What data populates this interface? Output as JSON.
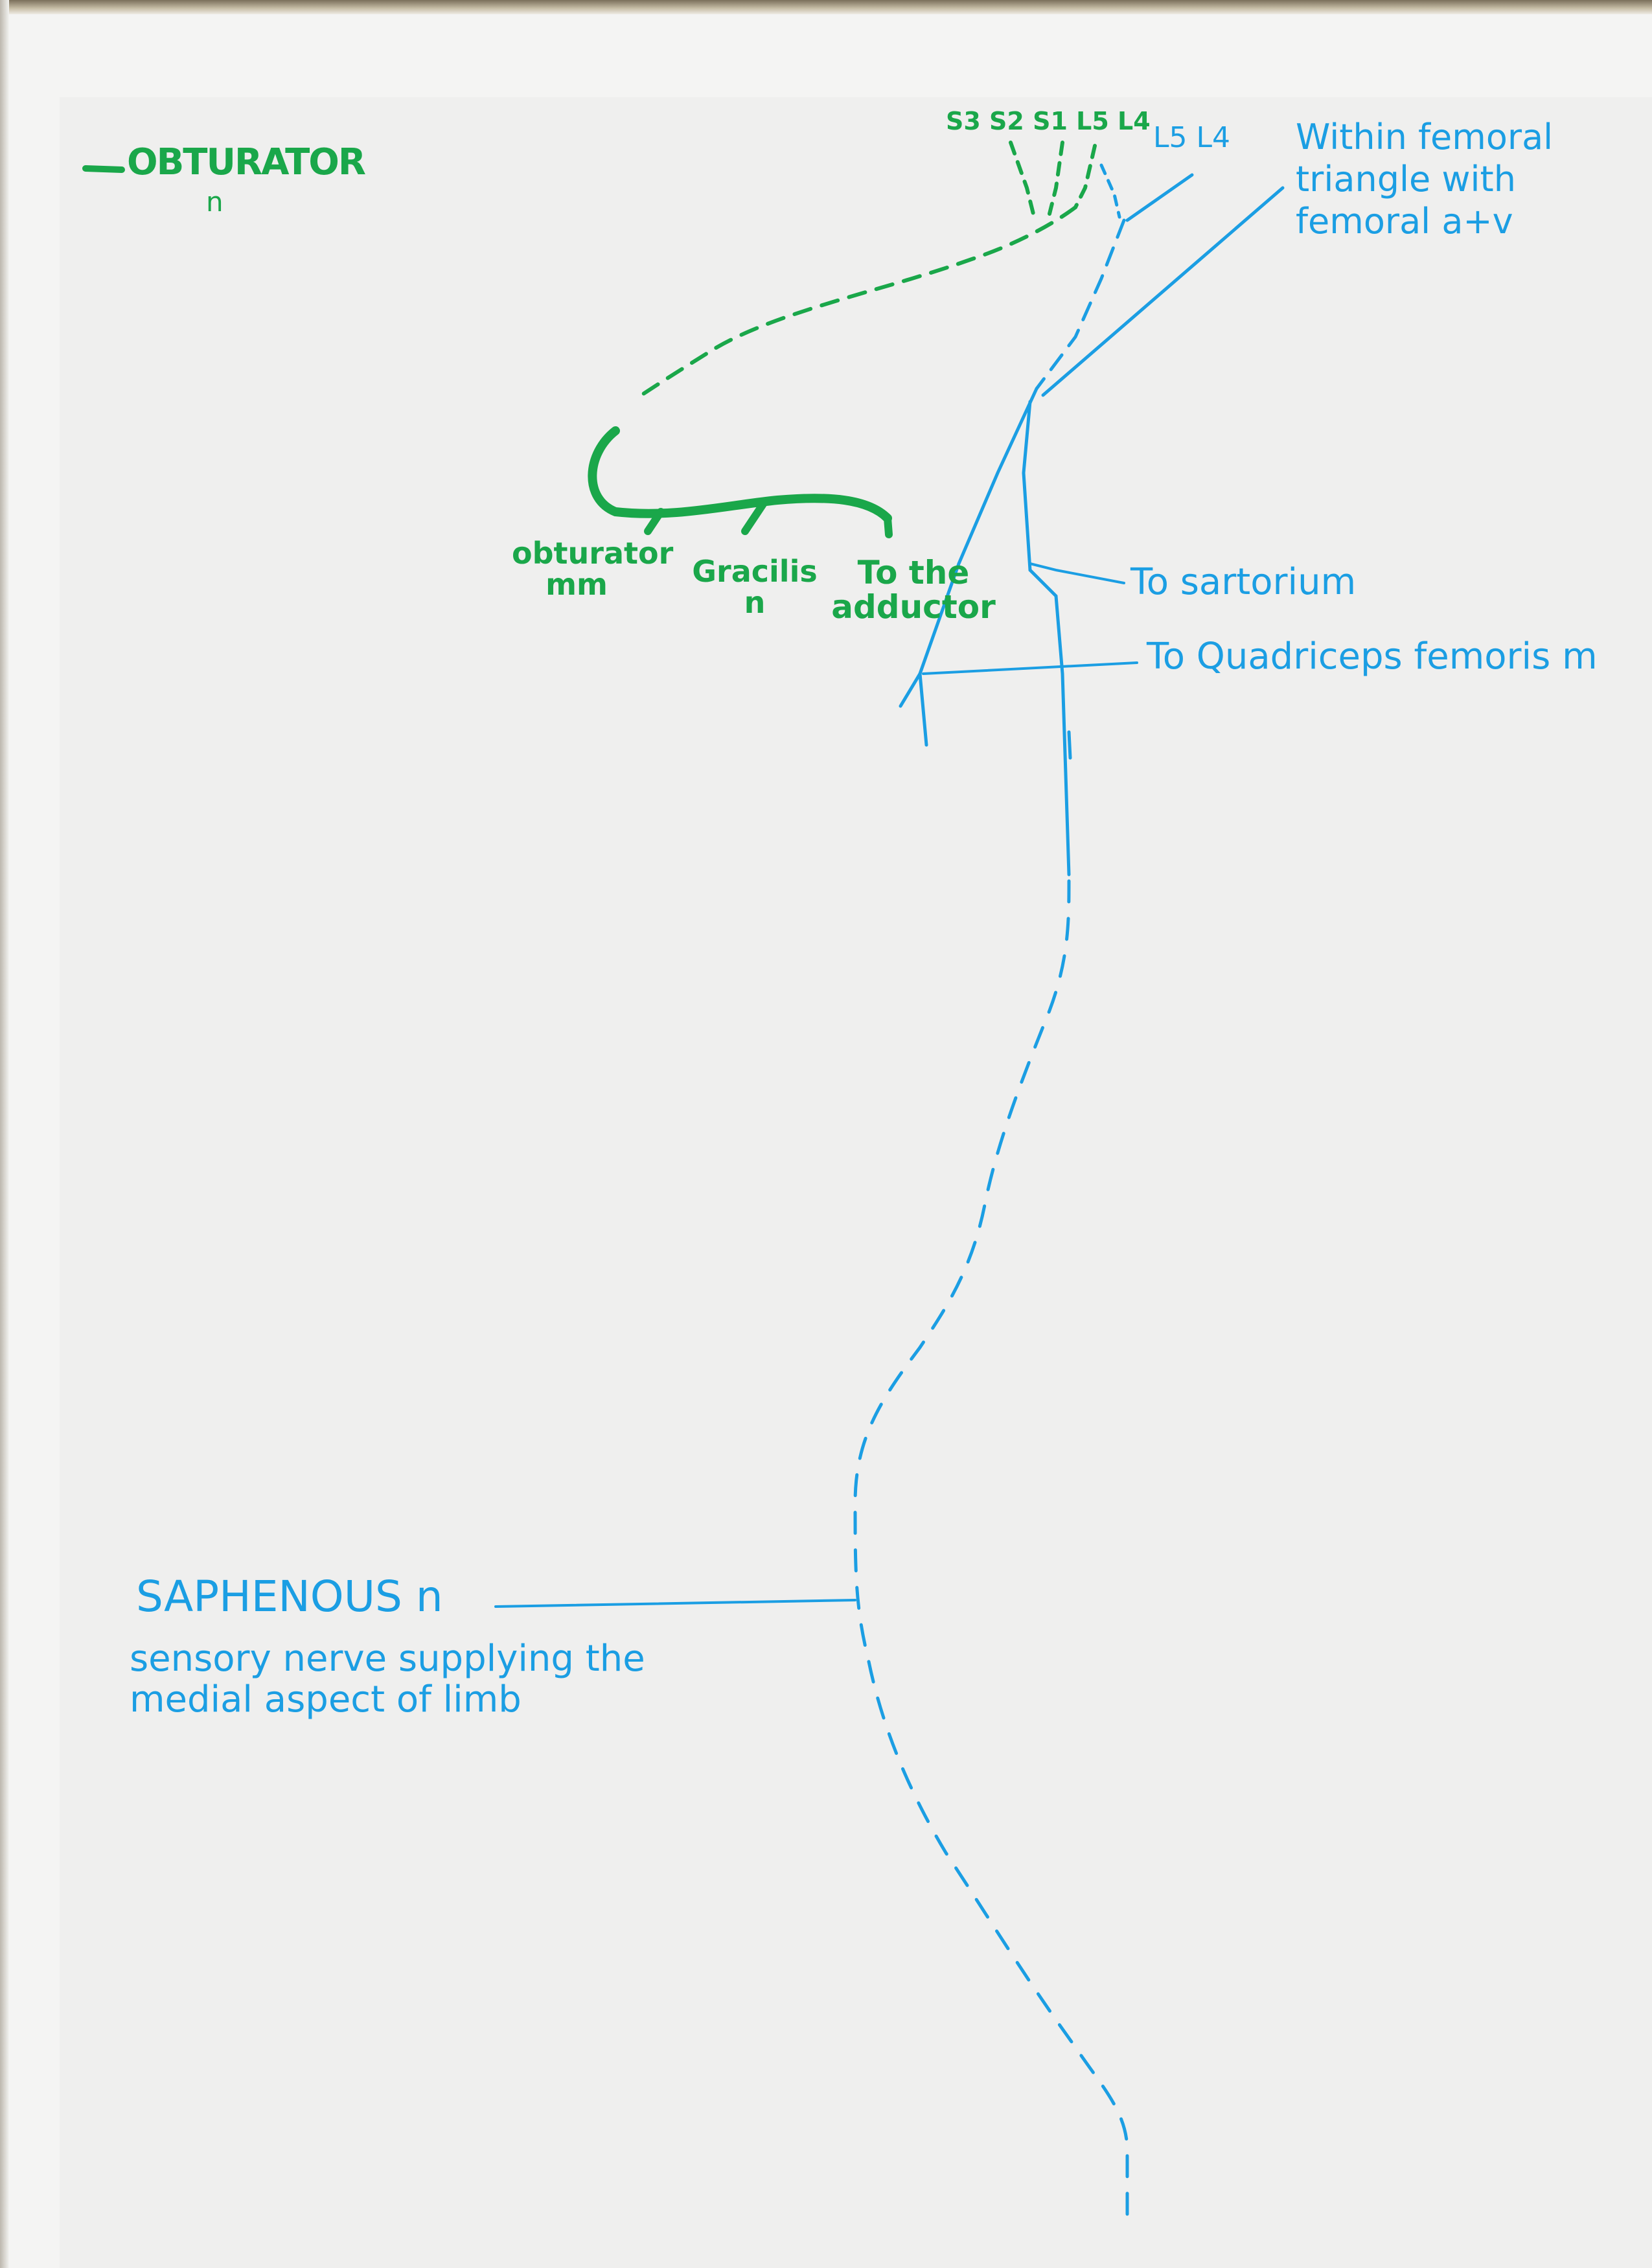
{
  "colors": {
    "green_ink": "#1aa74a",
    "blue_ink": "#1b9ee3",
    "paper": "#efefee"
  },
  "obturator": {
    "title": "OBTURATOR",
    "title_suffix": "n",
    "roots": [
      "S3",
      "S2",
      "S1",
      "L5",
      "L4"
    ],
    "branches": {
      "obturator_mm": "obturator mm",
      "gracilis": "Gracilis n",
      "to_adductor": "To the adductor"
    }
  },
  "femoral": {
    "roots": [
      "L5",
      "L4"
    ],
    "triangle_note": "Within femoral triangle with femoral a+v",
    "to_sartorius": "To sartorium",
    "to_quadriceps": "To Quadriceps femoris m"
  },
  "saphenous": {
    "title": "SAPHENOUS n",
    "description": "sensory nerve supplying the medial aspect of limb"
  }
}
